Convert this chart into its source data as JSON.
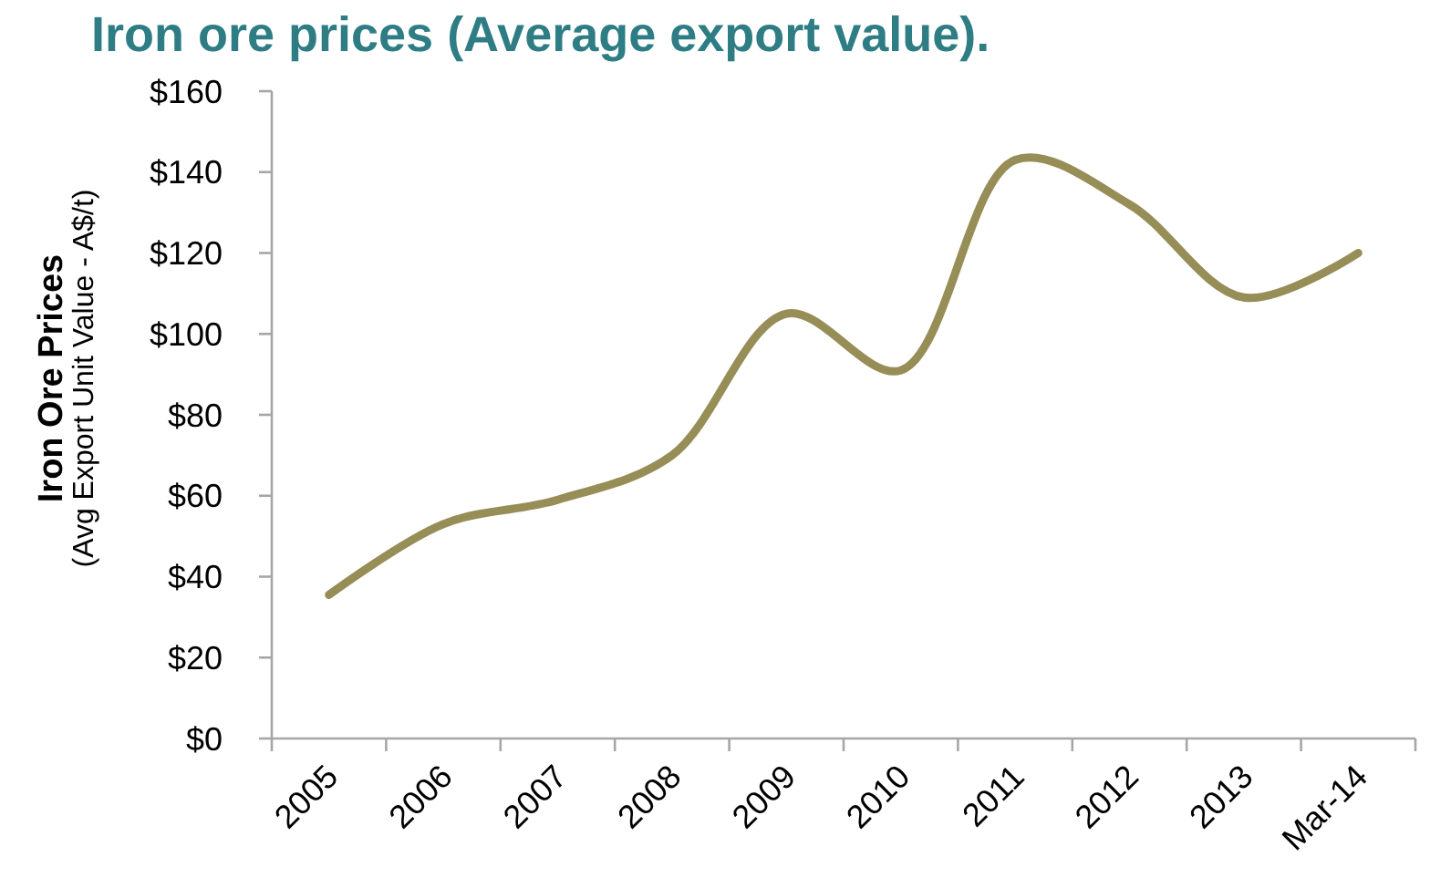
{
  "chart_data": {
    "type": "line",
    "title": "Iron ore prices (Average export value).",
    "ylabel": "Iron Ore Prices\n(Avg Export Unit Value - A$/t)",
    "categories": [
      "2005",
      "2006",
      "2007",
      "2008",
      "2009",
      "2010",
      "2011",
      "2012",
      "2013",
      "Mar-14"
    ],
    "series": [
      {
        "color": "#978d56",
        "values": [
          35.5,
          53,
          59,
          70,
          105,
          91,
          143,
          132,
          109,
          120
        ]
      }
    ],
    "ylim": [
      0,
      160
    ],
    "yticks": [
      {
        "value": 0,
        "label": "$0"
      },
      {
        "value": 20,
        "label": "$20"
      },
      {
        "value": 40,
        "label": "$40"
      },
      {
        "value": 60,
        "label": "$60"
      },
      {
        "value": 80,
        "label": "$80"
      },
      {
        "value": 100,
        "label": "$100"
      },
      {
        "value": 120,
        "label": "$120"
      },
      {
        "value": 140,
        "label": "$140"
      },
      {
        "value": 160,
        "label": "$160"
      }
    ]
  }
}
